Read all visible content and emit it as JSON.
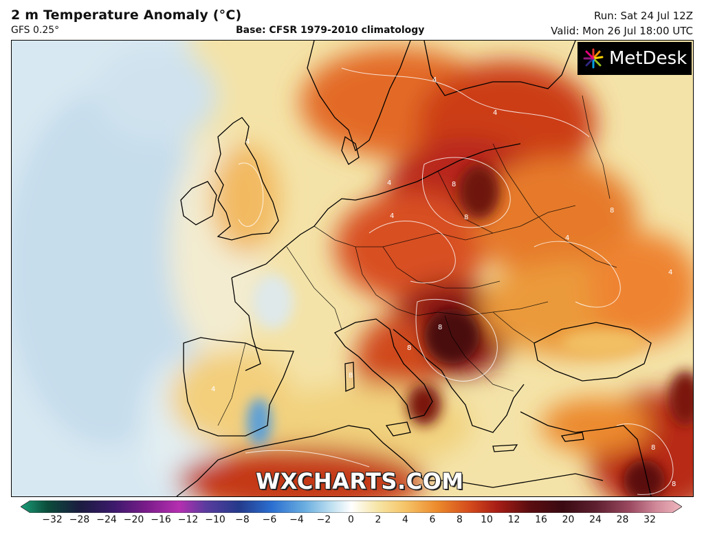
{
  "header": {
    "title": "2 m Temperature Anomaly (°C)",
    "model": "GFS 0.25°",
    "base": "Base: CFSR 1979-2010 climatology",
    "run": "Run: Sat 24 Jul 12Z",
    "valid": "Valid: Mon 26 Jul 18:00 UTC"
  },
  "logo": {
    "text": "MetDesk",
    "icon": "metdesk-starburst-icon"
  },
  "watermark": "WXCHARTS.COM",
  "colorbar": {
    "ticks": [
      "−32",
      "−28",
      "−24",
      "−20",
      "−16",
      "−12",
      "−10",
      "−8",
      "−6",
      "−4",
      "−2",
      "0",
      "2",
      "4",
      "6",
      "8",
      "10",
      "12",
      "16",
      "20",
      "24",
      "28",
      "32"
    ],
    "colors": [
      "#1a9e7a",
      "#0b4d3a",
      "#1b1b40",
      "#3b1a6b",
      "#7a1c8a",
      "#b52fb0",
      "#5a3c9e",
      "#243a8a",
      "#2b6fd1",
      "#6aaee0",
      "#bfe0f0",
      "#ffffff",
      "#f6e5a6",
      "#f6c66a",
      "#ec8a2c",
      "#d34a1c",
      "#a81e16",
      "#5a0d10",
      "#3a0a12",
      "#5e2030",
      "#9a4860",
      "#cf8898",
      "#f0b8c0"
    ]
  },
  "map": {
    "region": "Europe",
    "contour_labels": [
      "4",
      "4",
      "4",
      "8",
      "8",
      "4",
      "8",
      "4",
      "8",
      "4",
      "8",
      "4",
      "8",
      "8",
      "4",
      "8"
    ]
  }
}
